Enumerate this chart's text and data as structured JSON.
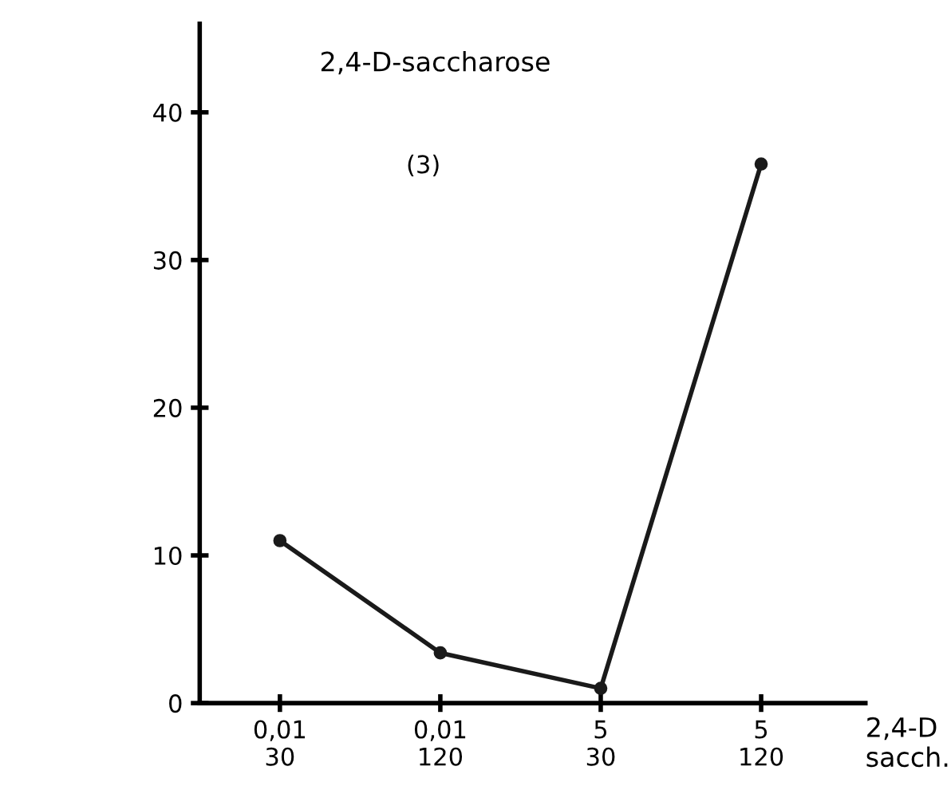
{
  "chart_data": {
    "type": "line",
    "title": "2,4-D-saccharose",
    "annotations": [
      "(3)"
    ],
    "xlabel": "2,4-D\nsacch.",
    "categories": [
      "0,01\n30",
      "0,01\n120",
      "5\n30",
      "5\n120"
    ],
    "series": [
      {
        "color": "#1a1a1a",
        "values": [
          11,
          3.4,
          1,
          36.5
        ]
      }
    ],
    "ylim": [
      0,
      46
    ],
    "yticks": [
      0,
      10,
      20,
      30,
      40
    ],
    "grid": false,
    "legend": false,
    "marker": "circle",
    "line_style": "solid"
  }
}
